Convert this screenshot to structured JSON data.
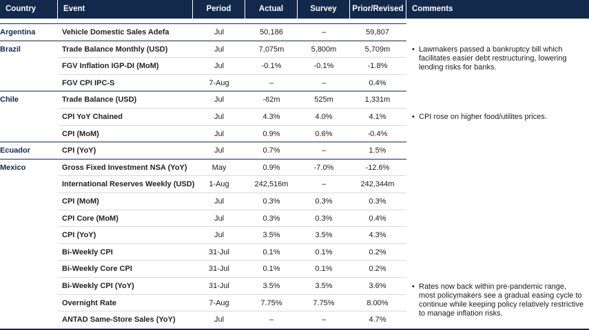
{
  "headers": {
    "country": "Country",
    "event": "Event",
    "period": "Period",
    "actual": "Actual",
    "survey": "Survey",
    "prior": "Prior/Revised",
    "comments": "Comments"
  },
  "rows": [
    {
      "country": "Argentina",
      "event": "Vehicle Domestic Sales Adefa",
      "period": "Jul",
      "actual": "50,186",
      "survey": "–",
      "prior": "59,807"
    },
    {
      "country": "Brazil",
      "event": "Trade Balance Monthly (USD)",
      "period": "Jul",
      "actual": "7,075m",
      "survey": "5,800m",
      "prior": "5,709m"
    },
    {
      "country": "",
      "event": "FGV Inflation IGP-DI (MoM)",
      "period": "Jul",
      "actual": "-0.1%",
      "survey": "-0.1%",
      "prior": "-1.8%"
    },
    {
      "country": "",
      "event": "FGV CPI IPC-S",
      "period": "7-Aug",
      "actual": "–",
      "survey": "–",
      "prior": "0.4%"
    },
    {
      "country": "Chile",
      "event": "Trade Balance (USD)",
      "period": "Jul",
      "actual": "-62m",
      "survey": "525m",
      "prior": "1,331m"
    },
    {
      "country": "",
      "event": "CPI YoY Chained",
      "period": "Jul",
      "actual": "4.3%",
      "survey": "4.0%",
      "prior": "4.1%"
    },
    {
      "country": "",
      "event": "CPI (MoM)",
      "period": "Jul",
      "actual": "0.9%",
      "survey": "0.6%",
      "prior": "-0.4%"
    },
    {
      "country": "Ecuador",
      "event": "CPI (YoY)",
      "period": "Jul",
      "actual": "0.7%",
      "survey": "–",
      "prior": "1.5%"
    },
    {
      "country": "Mexico",
      "event": "Gross Fixed Investment NSA (YoY)",
      "period": "May",
      "actual": "0.9%",
      "survey": "-7.0%",
      "prior": "-12.6%"
    },
    {
      "country": "",
      "event": "International Reserves Weekly (USD)",
      "period": "1-Aug",
      "actual": "242,516m",
      "survey": "–",
      "prior": "242,344m"
    },
    {
      "country": "",
      "event": "CPI (MoM)",
      "period": "Jul",
      "actual": "0.3%",
      "survey": "0.3%",
      "prior": "0.3%"
    },
    {
      "country": "",
      "event": "CPI Core (MoM)",
      "period": "Jul",
      "actual": "0.3%",
      "survey": "0.3%",
      "prior": "0.4%"
    },
    {
      "country": "",
      "event": "CPI (YoY)",
      "period": "Jul",
      "actual": "3.5%",
      "survey": "3.5%",
      "prior": "4.3%"
    },
    {
      "country": "",
      "event": "Bi-Weekly CPI",
      "period": "31-Jul",
      "actual": "0.1%",
      "survey": "0.1%",
      "prior": "0.2%"
    },
    {
      "country": "",
      "event": "Bi-Weekly Core CPI",
      "period": "31-Jul",
      "actual": "0.1%",
      "survey": "0.1%",
      "prior": "0.2%"
    },
    {
      "country": "",
      "event": "Bi-Weekly CPI (YoY)",
      "period": "31-Jul",
      "actual": "3.5%",
      "survey": "3.5%",
      "prior": "3.6%"
    },
    {
      "country": "",
      "event": "Overnight Rate",
      "period": "7-Aug",
      "actual": "7.75%",
      "survey": "7.75%",
      "prior": "8.00%"
    },
    {
      "country": "",
      "event": "ANTAD Same-Store Sales (YoY)",
      "period": "Jul",
      "actual": "–",
      "survey": "–",
      "prior": "4.7%"
    }
  ],
  "comments": {
    "brazil": "Lawmakers passed a bankruptcy bill which facilitates easier debt restructuring, lowering lending risks for banks.",
    "chile": "CPI rose on higher food/utilites prices.",
    "mexico": "Rates now back within pre-pandemic range, most policymakers see a gradual easing cycle to continue while keeping policy relatively restrictive to manage inflation risks."
  },
  "bullet": "•"
}
